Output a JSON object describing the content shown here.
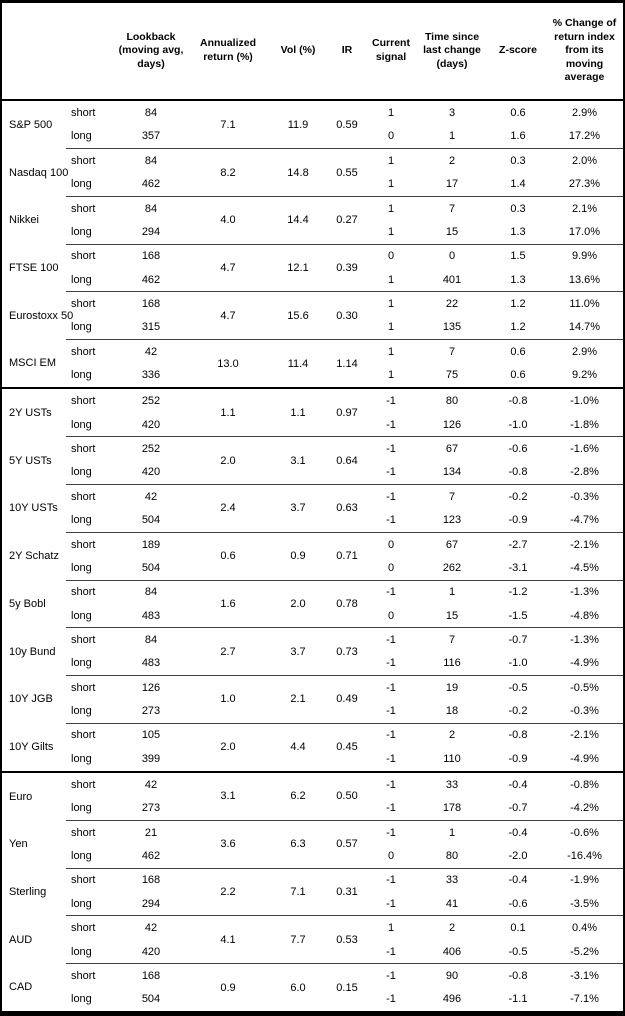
{
  "table": {
    "header": {
      "cols": [
        "",
        "",
        "Lookback (moving avg, days)",
        "Annualized return (%)",
        "Vol (%)",
        "IR",
        "Current signal",
        "Time since last change (days)",
        "Z-score",
        "% Change of return index from its moving average"
      ]
    },
    "groups": [
      {
        "name": "S&P 500",
        "ret": "7.1",
        "vol": "11.9",
        "ir": "0.59",
        "section_start": false,
        "rows": [
          {
            "label": "short",
            "lookback": "84",
            "signal": "1",
            "days": "3",
            "z": "0.6",
            "pct": "2.9%"
          },
          {
            "label": "long",
            "lookback": "357",
            "signal": "0",
            "days": "1",
            "z": "1.6",
            "pct": "17.2%"
          }
        ]
      },
      {
        "name": "Nasdaq 100",
        "ret": "8.2",
        "vol": "14.8",
        "ir": "0.55",
        "section_start": false,
        "rows": [
          {
            "label": "short",
            "lookback": "84",
            "signal": "1",
            "days": "2",
            "z": "0.3",
            "pct": "2.0%"
          },
          {
            "label": "long",
            "lookback": "462",
            "signal": "1",
            "days": "17",
            "z": "1.4",
            "pct": "27.3%"
          }
        ]
      },
      {
        "name": "Nikkei",
        "ret": "4.0",
        "vol": "14.4",
        "ir": "0.27",
        "section_start": false,
        "rows": [
          {
            "label": "short",
            "lookback": "84",
            "signal": "1",
            "days": "7",
            "z": "0.3",
            "pct": "2.1%"
          },
          {
            "label": "long",
            "lookback": "294",
            "signal": "1",
            "days": "15",
            "z": "1.3",
            "pct": "17.0%"
          }
        ]
      },
      {
        "name": "FTSE 100",
        "ret": "4.7",
        "vol": "12.1",
        "ir": "0.39",
        "section_start": false,
        "rows": [
          {
            "label": "short",
            "lookback": "168",
            "signal": "0",
            "days": "0",
            "z": "1.5",
            "pct": "9.9%"
          },
          {
            "label": "long",
            "lookback": "462",
            "signal": "1",
            "days": "401",
            "z": "1.3",
            "pct": "13.6%"
          }
        ]
      },
      {
        "name": "Eurostoxx 50",
        "ret": "4.7",
        "vol": "15.6",
        "ir": "0.30",
        "section_start": false,
        "rows": [
          {
            "label": "short",
            "lookback": "168",
            "signal": "1",
            "days": "22",
            "z": "1.2",
            "pct": "11.0%"
          },
          {
            "label": "long",
            "lookback": "315",
            "signal": "1",
            "days": "135",
            "z": "1.2",
            "pct": "14.7%"
          }
        ]
      },
      {
        "name": "MSCI EM",
        "ret": "13.0",
        "vol": "11.4",
        "ir": "1.14",
        "section_start": false,
        "rows": [
          {
            "label": "short",
            "lookback": "42",
            "signal": "1",
            "days": "7",
            "z": "0.6",
            "pct": "2.9%"
          },
          {
            "label": "long",
            "lookback": "336",
            "signal": "1",
            "days": "75",
            "z": "0.6",
            "pct": "9.2%"
          }
        ]
      },
      {
        "name": "2Y USTs",
        "ret": "1.1",
        "vol": "1.1",
        "ir": "0.97",
        "section_start": true,
        "rows": [
          {
            "label": "short",
            "lookback": "252",
            "signal": "-1",
            "days": "80",
            "z": "-0.8",
            "pct": "-1.0%"
          },
          {
            "label": "long",
            "lookback": "420",
            "signal": "-1",
            "days": "126",
            "z": "-1.0",
            "pct": "-1.8%"
          }
        ]
      },
      {
        "name": "5Y USTs",
        "ret": "2.0",
        "vol": "3.1",
        "ir": "0.64",
        "section_start": false,
        "rows": [
          {
            "label": "short",
            "lookback": "252",
            "signal": "-1",
            "days": "67",
            "z": "-0.6",
            "pct": "-1.6%"
          },
          {
            "label": "long",
            "lookback": "420",
            "signal": "-1",
            "days": "134",
            "z": "-0.8",
            "pct": "-2.8%"
          }
        ]
      },
      {
        "name": "10Y USTs",
        "ret": "2.4",
        "vol": "3.7",
        "ir": "0.63",
        "section_start": false,
        "rows": [
          {
            "label": "short",
            "lookback": "42",
            "signal": "-1",
            "days": "7",
            "z": "-0.2",
            "pct": "-0.3%"
          },
          {
            "label": "long",
            "lookback": "504",
            "signal": "-1",
            "days": "123",
            "z": "-0.9",
            "pct": "-4.7%"
          }
        ]
      },
      {
        "name": "2Y Schatz",
        "ret": "0.6",
        "vol": "0.9",
        "ir": "0.71",
        "section_start": false,
        "rows": [
          {
            "label": "short",
            "lookback": "189",
            "signal": "0",
            "days": "67",
            "z": "-2.7",
            "pct": "-2.1%"
          },
          {
            "label": "long",
            "lookback": "504",
            "signal": "0",
            "days": "262",
            "z": "-3.1",
            "pct": "-4.5%"
          }
        ]
      },
      {
        "name": "5y Bobl",
        "ret": "1.6",
        "vol": "2.0",
        "ir": "0.78",
        "section_start": false,
        "rows": [
          {
            "label": "short",
            "lookback": "84",
            "signal": "-1",
            "days": "1",
            "z": "-1.2",
            "pct": "-1.3%"
          },
          {
            "label": "long",
            "lookback": "483",
            "signal": "0",
            "days": "15",
            "z": "-1.5",
            "pct": "-4.8%"
          }
        ]
      },
      {
        "name": "10y Bund",
        "ret": "2.7",
        "vol": "3.7",
        "ir": "0.73",
        "section_start": false,
        "rows": [
          {
            "label": "short",
            "lookback": "84",
            "signal": "-1",
            "days": "7",
            "z": "-0.7",
            "pct": "-1.3%"
          },
          {
            "label": "long",
            "lookback": "483",
            "signal": "-1",
            "days": "116",
            "z": "-1.0",
            "pct": "-4.9%"
          }
        ]
      },
      {
        "name": "10Y JGB",
        "ret": "1.0",
        "vol": "2.1",
        "ir": "0.49",
        "section_start": false,
        "rows": [
          {
            "label": "short",
            "lookback": "126",
            "signal": "-1",
            "days": "19",
            "z": "-0.5",
            "pct": "-0.5%"
          },
          {
            "label": "long",
            "lookback": "273",
            "signal": "-1",
            "days": "18",
            "z": "-0.2",
            "pct": "-0.3%"
          }
        ]
      },
      {
        "name": "10Y Gilts",
        "ret": "2.0",
        "vol": "4.4",
        "ir": "0.45",
        "section_start": false,
        "rows": [
          {
            "label": "short",
            "lookback": "105",
            "signal": "-1",
            "days": "2",
            "z": "-0.8",
            "pct": "-2.1%"
          },
          {
            "label": "long",
            "lookback": "399",
            "signal": "-1",
            "days": "110",
            "z": "-0.9",
            "pct": "-4.9%"
          }
        ]
      },
      {
        "name": "Euro",
        "ret": "3.1",
        "vol": "6.2",
        "ir": "0.50",
        "section_start": true,
        "rows": [
          {
            "label": "short",
            "lookback": "42",
            "signal": "-1",
            "days": "33",
            "z": "-0.4",
            "pct": "-0.8%"
          },
          {
            "label": "long",
            "lookback": "273",
            "signal": "-1",
            "days": "178",
            "z": "-0.7",
            "pct": "-4.2%"
          }
        ]
      },
      {
        "name": "Yen",
        "ret": "3.6",
        "vol": "6.3",
        "ir": "0.57",
        "section_start": false,
        "rows": [
          {
            "label": "short",
            "lookback": "21",
            "signal": "-1",
            "days": "1",
            "z": "-0.4",
            "pct": "-0.6%"
          },
          {
            "label": "long",
            "lookback": "462",
            "signal": "0",
            "days": "80",
            "z": "-2.0",
            "pct": "-16.4%"
          }
        ]
      },
      {
        "name": "Sterling",
        "ret": "2.2",
        "vol": "7.1",
        "ir": "0.31",
        "section_start": false,
        "rows": [
          {
            "label": "short",
            "lookback": "168",
            "signal": "-1",
            "days": "33",
            "z": "-0.4",
            "pct": "-1.9%"
          },
          {
            "label": "long",
            "lookback": "294",
            "signal": "-1",
            "days": "41",
            "z": "-0.6",
            "pct": "-3.5%"
          }
        ]
      },
      {
        "name": "AUD",
        "ret": "4.1",
        "vol": "7.7",
        "ir": "0.53",
        "section_start": false,
        "rows": [
          {
            "label": "short",
            "lookback": "42",
            "signal": "1",
            "days": "2",
            "z": "0.1",
            "pct": "0.4%"
          },
          {
            "label": "long",
            "lookback": "420",
            "signal": "-1",
            "days": "406",
            "z": "-0.5",
            "pct": "-5.2%"
          }
        ]
      },
      {
        "name": "CAD",
        "ret": "0.9",
        "vol": "6.0",
        "ir": "0.15",
        "section_start": false,
        "rows": [
          {
            "label": "short",
            "lookback": "168",
            "signal": "-1",
            "days": "90",
            "z": "-0.8",
            "pct": "-3.1%"
          },
          {
            "label": "long",
            "lookback": "504",
            "signal": "-1",
            "days": "496",
            "z": "-1.1",
            "pct": "-7.1%"
          }
        ]
      }
    ]
  }
}
